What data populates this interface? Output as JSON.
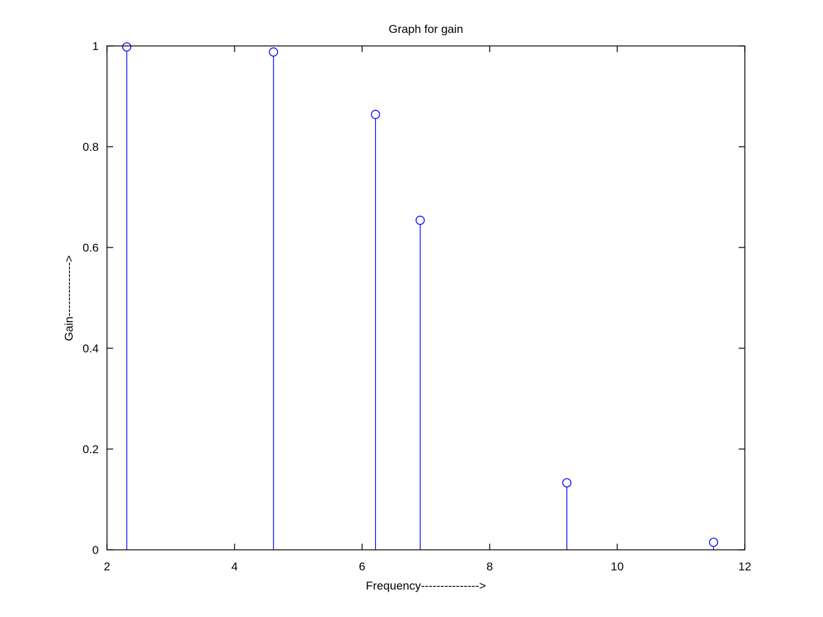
{
  "chart_data": {
    "type": "scatter",
    "style": "stem",
    "marker": "circle",
    "title": "Graph for gain",
    "xlabel": "Frequency--------------->",
    "ylabel": "Gain-------------->",
    "xlim": [
      2,
      12
    ],
    "ylim": [
      0,
      1
    ],
    "xticks": [
      2,
      4,
      6,
      8,
      10,
      12
    ],
    "yticks": [
      0,
      0.2,
      0.4,
      0.6,
      0.8,
      1
    ],
    "xtick_labels": [
      "2",
      "4",
      "6",
      "8",
      "10",
      "12"
    ],
    "ytick_labels": [
      "0",
      "0.2",
      "0.4",
      "0.6",
      "0.8",
      "1"
    ],
    "grid": false,
    "series": [
      {
        "color": "#0000ff",
        "x": [
          2.31,
          4.61,
          6.21,
          6.91,
          9.21,
          11.51
        ],
        "y": [
          0.998,
          0.988,
          0.864,
          0.654,
          0.133,
          0.015
        ]
      }
    ]
  }
}
